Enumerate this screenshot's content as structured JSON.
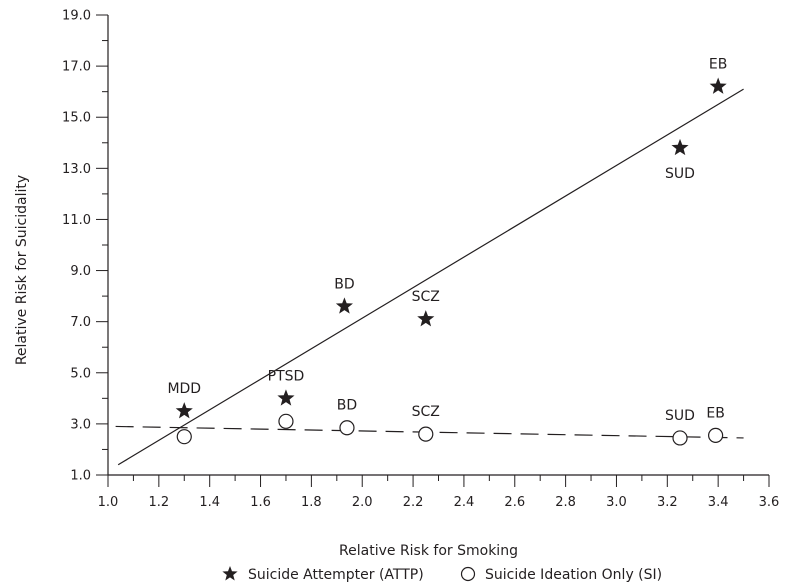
{
  "chart_data": {
    "type": "scatter",
    "xlabel": "Relative Risk for Smoking",
    "ylabel": "Relative Risk for Suicidality",
    "xlim": [
      1.0,
      3.6
    ],
    "ylim": [
      1.0,
      19.0
    ],
    "x_ticks": [
      "1.0",
      "1.2",
      "1.4",
      "1.6",
      "1.8",
      "2.0",
      "2.2",
      "2.4",
      "2.6",
      "2.8",
      "3.0",
      "3.2",
      "3.4",
      "3.6"
    ],
    "y_ticks": [
      "1.0",
      "3.0",
      "5.0",
      "7.0",
      "9.0",
      "11.0",
      "13.0",
      "15.0",
      "17.0",
      "19.0"
    ],
    "grid": false,
    "legend_position": "bottom",
    "series": [
      {
        "name": "Suicide Attempter (ATTP)",
        "marker": "star",
        "color": "#231f20",
        "trendline": {
          "style": "solid",
          "x": [
            1.04,
            3.5
          ],
          "y": [
            1.4,
            16.1
          ]
        },
        "points": [
          {
            "label": "MDD",
            "x": 1.3,
            "y": 3.5
          },
          {
            "label": "PTSD",
            "x": 1.7,
            "y": 4.0
          },
          {
            "label": "BD",
            "x": 1.93,
            "y": 7.6
          },
          {
            "label": "SCZ",
            "x": 2.25,
            "y": 7.1
          },
          {
            "label": "SUD",
            "x": 3.25,
            "y": 13.8
          },
          {
            "label": "EB",
            "x": 3.4,
            "y": 16.2
          }
        ]
      },
      {
        "name": "Suicide Ideation Only (SI)",
        "marker": "open-circle",
        "color": "#231f20",
        "trendline": {
          "style": "dashed",
          "x": [
            1.03,
            3.5
          ],
          "y": [
            2.9,
            2.45
          ]
        },
        "points": [
          {
            "label": "",
            "x": 1.3,
            "y": 2.5
          },
          {
            "label": "",
            "x": 1.7,
            "y": 3.1
          },
          {
            "label": "BD",
            "x": 1.94,
            "y": 2.85
          },
          {
            "label": "SCZ",
            "x": 2.25,
            "y": 2.6
          },
          {
            "label": "SUD",
            "x": 3.25,
            "y": 2.45
          },
          {
            "label": "EB",
            "x": 3.39,
            "y": 2.55
          }
        ]
      }
    ]
  }
}
